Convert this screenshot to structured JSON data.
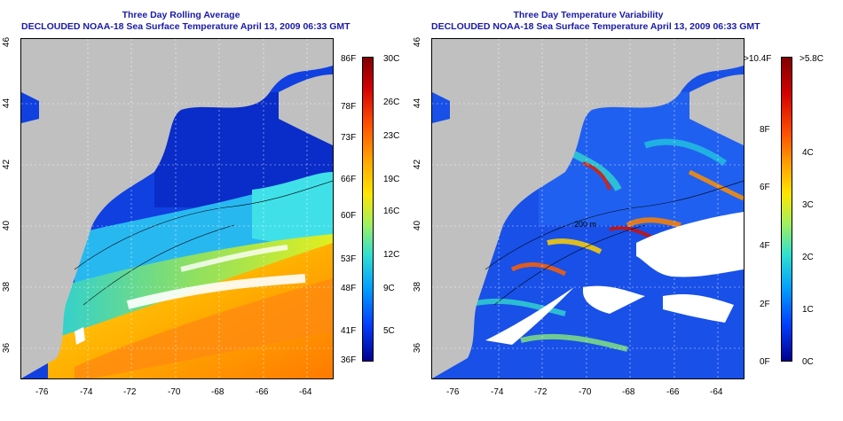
{
  "left_panel": {
    "title_line1": "Three Day Rolling Average",
    "title_line2": "DECLOUDED NOAA-18 Sea Surface Temperature April 13, 2009 06:33 GMT",
    "x_ticks": [
      "-76",
      "-74",
      "-72",
      "-70",
      "-68",
      "-66",
      "-64"
    ],
    "y_ticks": [
      "36",
      "38",
      "40",
      "42",
      "44",
      "46"
    ],
    "colorbar": {
      "fahrenheit": [
        "86F",
        "78F",
        "73F",
        "66F",
        "60F",
        "53F",
        "48F",
        "41F",
        "36F"
      ],
      "celsius": [
        "30C",
        "26C",
        "23C",
        "19C",
        "16C",
        "12C",
        "9C",
        "5C"
      ]
    }
  },
  "right_panel": {
    "title_line1": "Three Day Temperature Variability",
    "title_line2": "DECLOUDED NOAA-18 Sea Surface Temperature April 13, 2009 06:33 GMT",
    "x_ticks": [
      "-76",
      "-74",
      "-72",
      "-70",
      "-68",
      "-66",
      "-64"
    ],
    "y_ticks": [
      "36",
      "38",
      "40",
      "42",
      "44",
      "46"
    ],
    "colorbar": {
      "fahrenheit": [
        ">10.4F",
        "8F",
        "6F",
        "4F",
        "2F",
        "0F"
      ],
      "celsius": [
        ">5.8C",
        "4C",
        "3C",
        "2C",
        "1C",
        "0C"
      ]
    },
    "contour_label": "200 m"
  },
  "colors": {
    "title": "#1a1aa8",
    "land": "#c0c0c0",
    "cloud": "#ffffff"
  }
}
